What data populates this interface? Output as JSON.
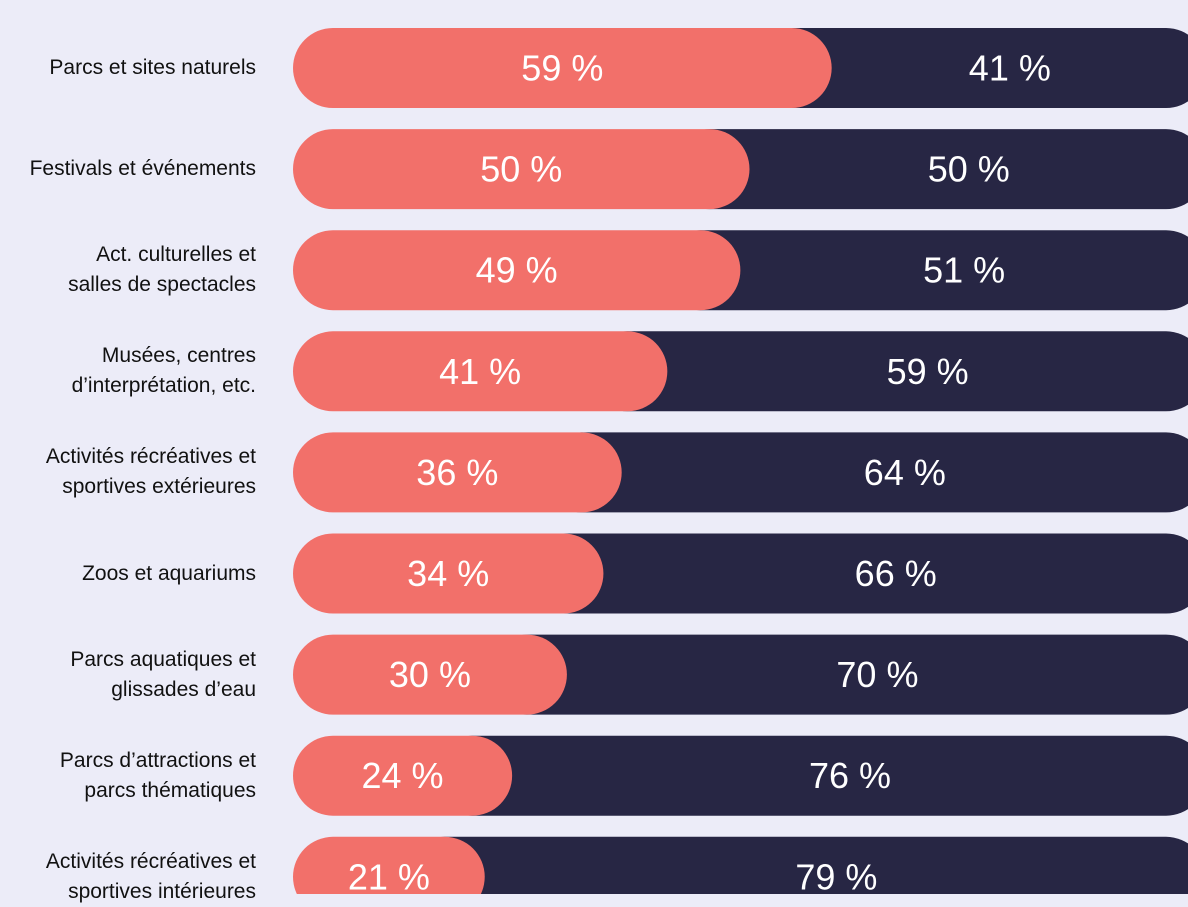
{
  "chart_data": {
    "type": "stacked-bar-horizontal",
    "categories": [
      "Parcs et sites naturels",
      "Festivals et événements",
      "Act. culturelles et\nsalles de spectacles",
      "Musées, centres\nd’interprétation, etc.",
      "Activités récréatives et\nsportives extérieures",
      "Zoos et aquariums",
      "Parcs aquatiques et\nglissades d’eau",
      "Parcs d’attractions et\nparcs thématiques",
      "Activités récréatives et\nsportives intérieures"
    ],
    "series": [
      {
        "color": "#f2706a",
        "values": [
          59,
          50,
          49,
          41,
          36,
          34,
          30,
          24,
          21
        ],
        "value_labels": [
          "59 %",
          "50 %",
          "49 %",
          "41 %",
          "36 %",
          "34 %",
          "30 %",
          "24 %",
          "21 %"
        ]
      },
      {
        "color": "#272644",
        "values": [
          41,
          50,
          51,
          59,
          64,
          66,
          70,
          76,
          79
        ],
        "value_labels": [
          "41 %",
          "50 %",
          "51 %",
          "59 %",
          "64 %",
          "66 %",
          "70 %",
          "76 %",
          "79 %"
        ]
      }
    ],
    "xlim": [
      0,
      100
    ]
  }
}
